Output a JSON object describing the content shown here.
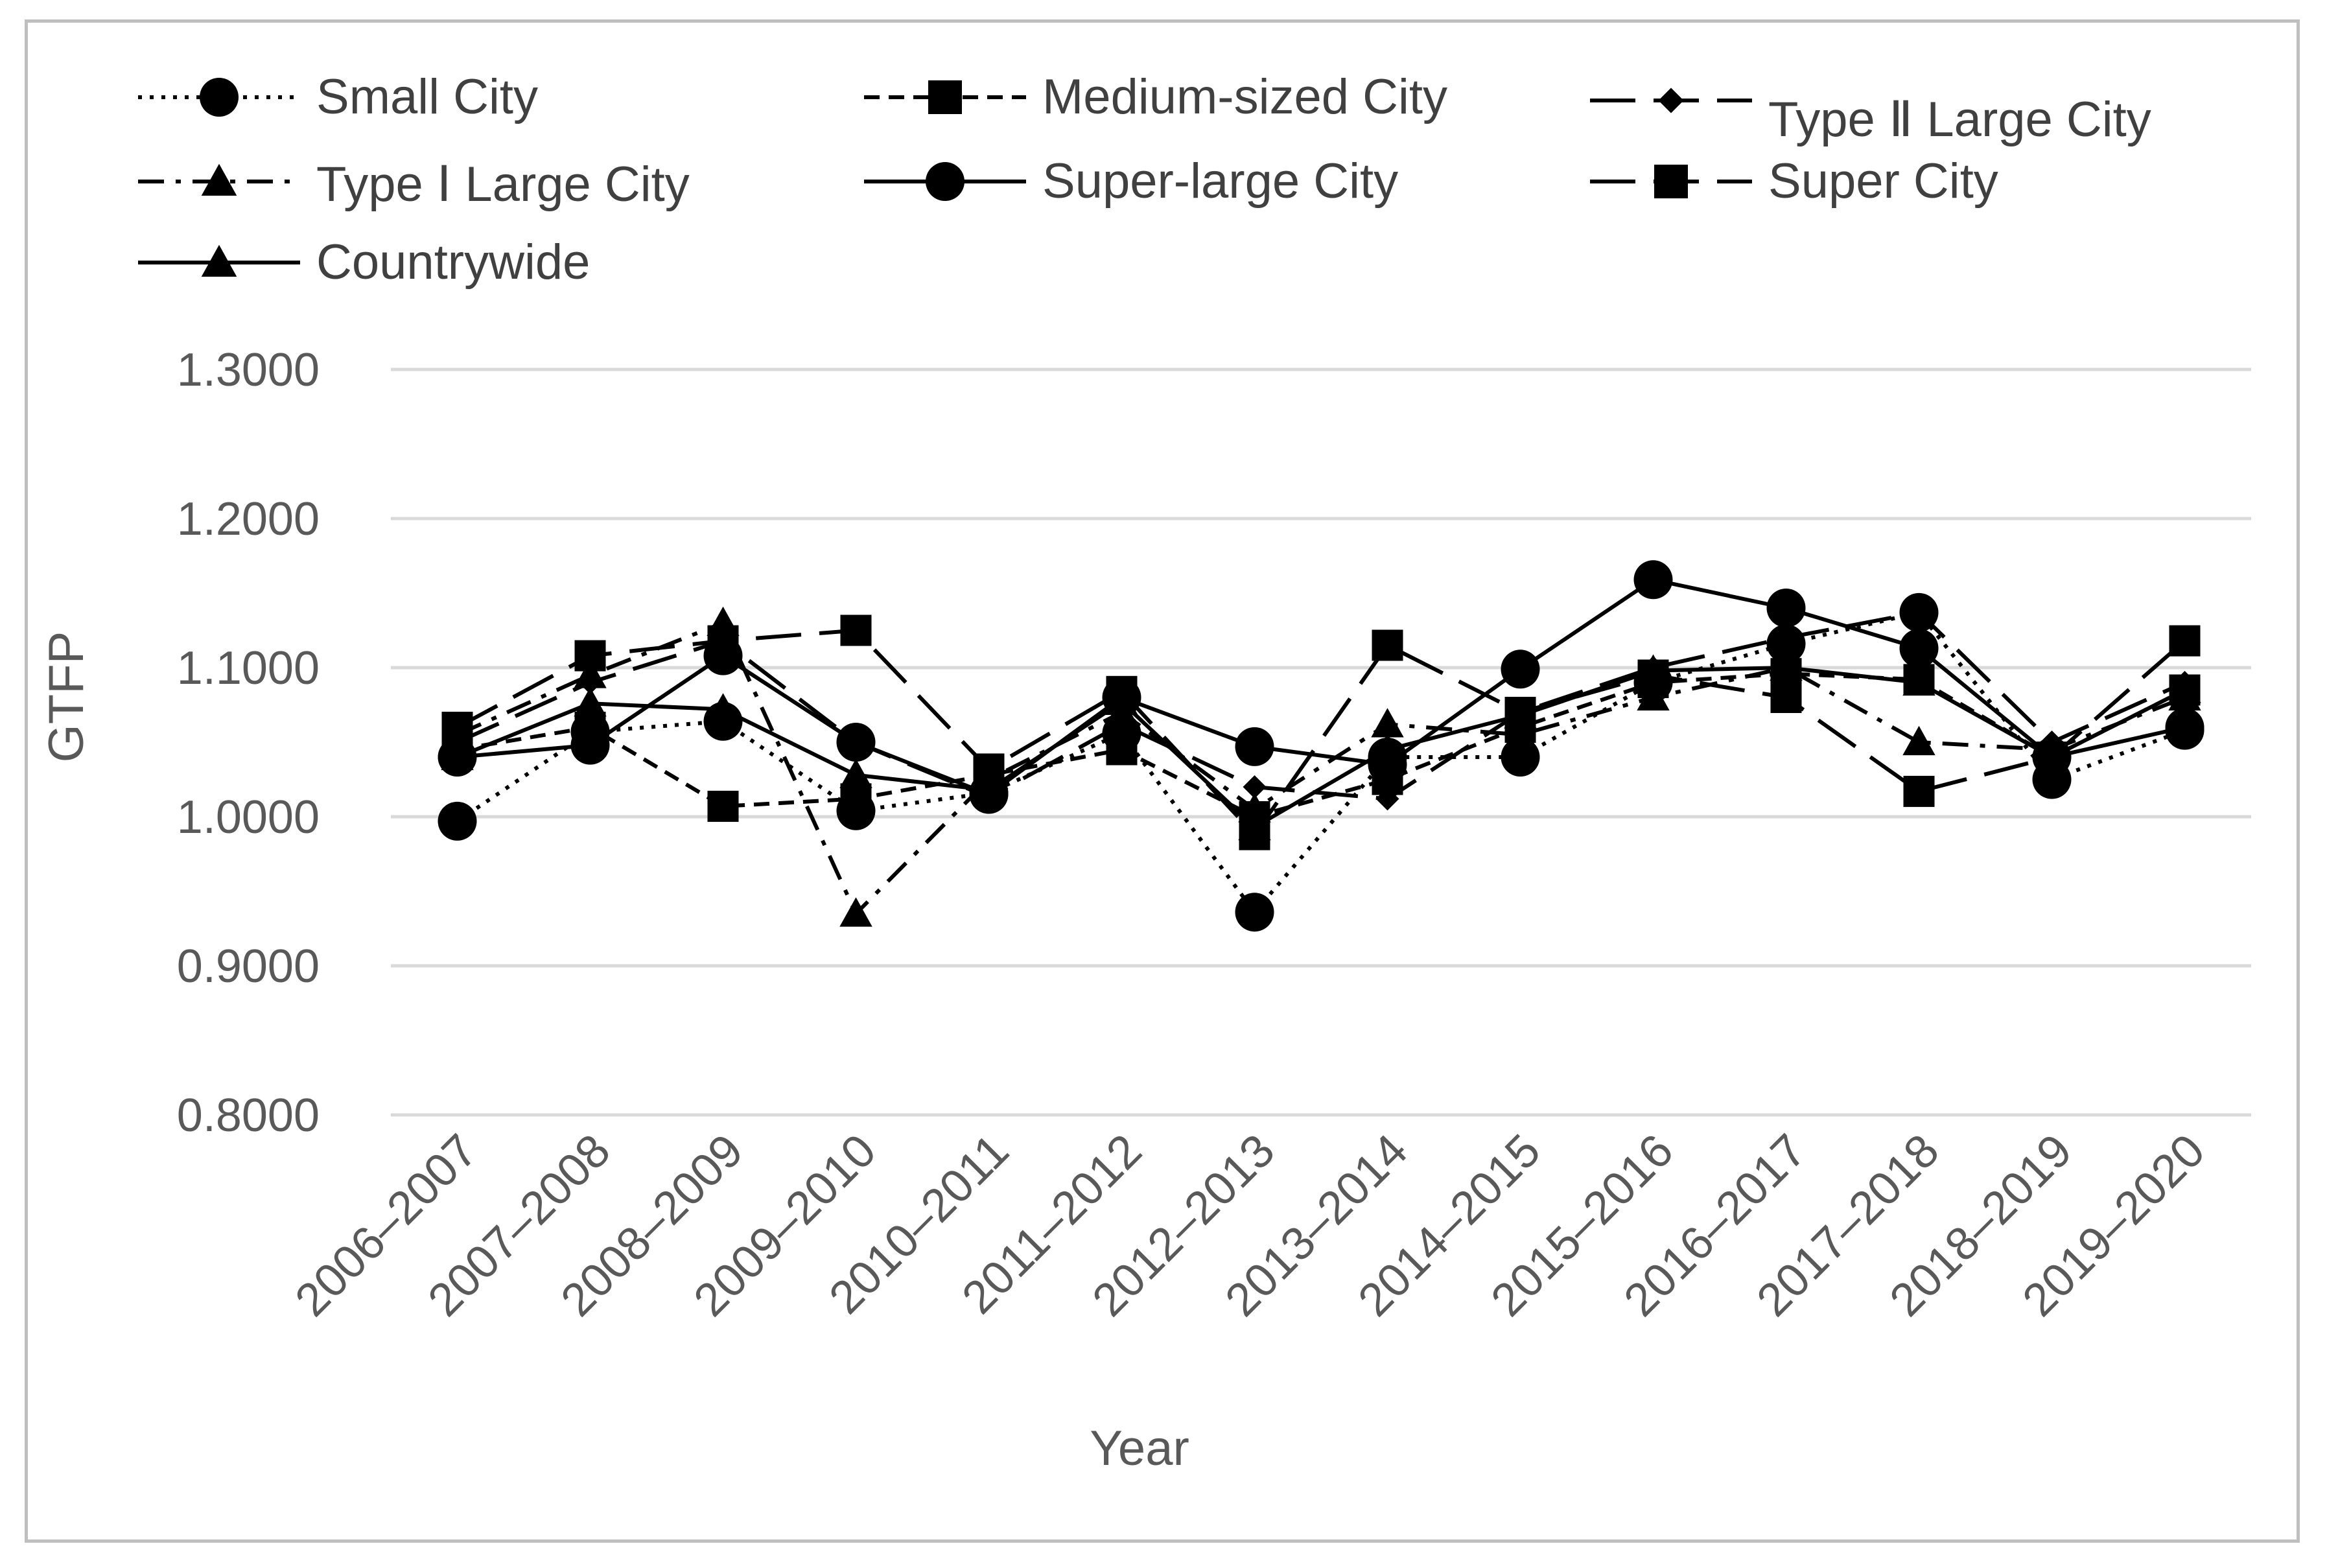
{
  "chart_data": {
    "type": "line",
    "title": "",
    "xlabel": "Year",
    "ylabel": "GTFP",
    "ylim": [
      0.8,
      1.3
    ],
    "yticks": [
      "0.8000",
      "0.9000",
      "1.0000",
      "1.1000",
      "1.2000",
      "1.3000"
    ],
    "grid": "horizontal",
    "legend_position": "top",
    "categories": [
      "2006–2007",
      "2007–2008",
      "2008–2009",
      "2009–2010",
      "2010–2011",
      "2011–2012",
      "2012–2013",
      "2013–2014",
      "2014–2015",
      "2015–2016",
      "2016–2017",
      "2017–2018",
      "2018–2019",
      "2019–2020"
    ],
    "series": [
      {
        "name": "Small City",
        "line": "dotted",
        "marker": "circle",
        "values": [
          0.997,
          1.057,
          1.064,
          1.004,
          1.016,
          1.056,
          0.936,
          1.04,
          1.04,
          1.09,
          1.116,
          1.137,
          1.025,
          1.058
        ]
      },
      {
        "name": "Medium-sized City",
        "line": "dashed",
        "marker": "square",
        "values": [
          1.045,
          1.06,
          1.007,
          1.012,
          1.028,
          1.045,
          1.0,
          1.025,
          1.06,
          1.09,
          1.096,
          1.092,
          1.04,
          1.085
        ]
      },
      {
        "name": "Type Ⅱ Large City",
        "line": "longdash",
        "marker": "diamond",
        "values": [
          1.05,
          1.09,
          1.118,
          1.05,
          1.013,
          1.062,
          1.02,
          1.012,
          1.07,
          1.1,
          1.12,
          1.137,
          1.05,
          1.09
        ]
      },
      {
        "name": "Type Ⅰ Large City",
        "line": "dashdot",
        "marker": "triangle",
        "values": [
          1.055,
          1.095,
          1.13,
          0.935,
          1.025,
          1.07,
          1.005,
          1.062,
          1.055,
          1.08,
          1.1,
          1.05,
          1.045,
          1.08
        ]
      },
      {
        "name": "Super-large City",
        "line": "solid",
        "marker": "circle",
        "values": [
          1.04,
          1.048,
          1.108,
          1.05,
          1.015,
          1.08,
          1.047,
          1.035,
          1.099,
          1.159,
          1.14,
          1.113,
          1.04,
          1.06
        ]
      },
      {
        "name": "Super City",
        "line": "longdash",
        "marker": "square",
        "values": [
          1.06,
          1.108,
          1.118,
          1.125,
          1.032,
          1.084,
          0.988,
          1.115,
          1.07,
          1.095,
          1.08,
          1.017,
          1.04,
          1.118
        ]
      },
      {
        "name": "Countrywide",
        "line": "solid",
        "marker": "triangle",
        "values": [
          1.04,
          1.076,
          1.072,
          1.028,
          1.018,
          1.077,
          0.993,
          1.045,
          1.068,
          1.098,
          1.1,
          1.09,
          1.04,
          1.085
        ]
      }
    ]
  }
}
